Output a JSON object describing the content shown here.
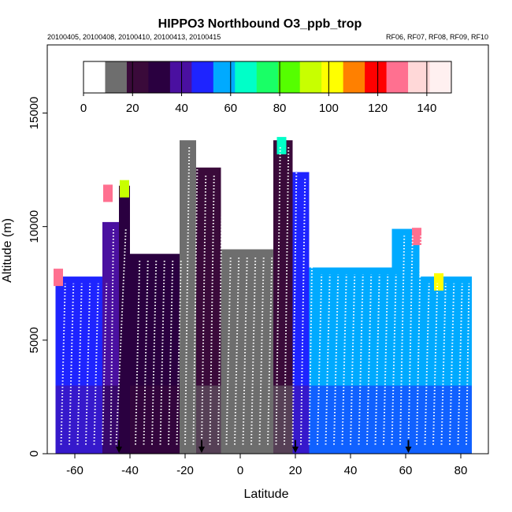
{
  "chart_data": {
    "type": "heatmap",
    "title": "HIPPO3 Northbound O3_ppb_trop",
    "subtitle_left": "20100405, 20100408, 20100410, 20100413, 20100415",
    "subtitle_right": "RF06, RF07, RF08, RF09, RF10",
    "xlabel": "Latitude",
    "ylabel": "Altitude (m)",
    "xlim": [
      -70,
      90
    ],
    "ylim": [
      0,
      18000
    ],
    "x_ticks": [
      -60,
      -40,
      -20,
      0,
      20,
      40,
      60,
      80
    ],
    "y_ticks": [
      0,
      5000,
      10000,
      15000
    ],
    "colorbar": {
      "range": [
        0,
        150
      ],
      "ticks": [
        0,
        20,
        40,
        60,
        80,
        100,
        120,
        140
      ],
      "colors": [
        "#ffffff",
        "#6e6e6e",
        "#3a0a3a",
        "#2a0040",
        "#4a10a0",
        "#1e24ff",
        "#00aaff",
        "#00ffc8",
        "#19ff66",
        "#55ff00",
        "#c8ff00",
        "#ffff00",
        "#ff8000",
        "#ff0000",
        "#ff7090",
        "#ffd8d8",
        "#fff0f0"
      ]
    },
    "profile_columns": [
      {
        "lat_min": -67,
        "lat_max": -50,
        "top": 7800,
        "value": 45
      },
      {
        "lat_min": -50,
        "lat_max": -44,
        "top": 10200,
        "value": 40
      },
      {
        "lat_min": -44,
        "lat_max": -40,
        "top": 11800,
        "value": 35
      },
      {
        "lat_min": -40,
        "lat_max": -22,
        "top": 8800,
        "value": 28
      },
      {
        "lat_min": -22,
        "lat_max": -16,
        "top": 13800,
        "value": 12
      },
      {
        "lat_min": -16,
        "lat_max": -7,
        "top": 12600,
        "value": 20
      },
      {
        "lat_min": -7,
        "lat_max": 12,
        "top": 9000,
        "value": 15
      },
      {
        "lat_min": 12,
        "lat_max": 19,
        "top": 13800,
        "value": 22
      },
      {
        "lat_min": 19,
        "lat_max": 25,
        "top": 12400,
        "value": 45
      },
      {
        "lat_min": 25,
        "lat_max": 55,
        "top": 8200,
        "value": 58
      },
      {
        "lat_min": 55,
        "lat_max": 65,
        "top": 9900,
        "value": 60
      },
      {
        "lat_min": 65,
        "lat_max": 84,
        "top": 7800,
        "value": 60
      }
    ],
    "stratosphere_edges": [
      {
        "lat": -66,
        "alt": 7800,
        "value": 130
      },
      {
        "lat": -48,
        "alt": 11500,
        "value": 130
      },
      {
        "lat": -42,
        "alt": 11700,
        "value": 90
      },
      {
        "lat": 15,
        "alt": 13600,
        "value": 70
      },
      {
        "lat": 64,
        "alt": 9600,
        "value": 130
      },
      {
        "lat": 72,
        "alt": 7600,
        "value": 100
      }
    ],
    "flight_tracks": [
      -65,
      -62,
      -59,
      -56,
      -53,
      -50,
      -47,
      -45,
      -38,
      -35,
      -32,
      -29,
      -26,
      -23,
      -20,
      -17,
      -14,
      -11,
      -8,
      -5,
      -2,
      1,
      4,
      7,
      10,
      13,
      16,
      19,
      22,
      25,
      28,
      31,
      34,
      37,
      40,
      43,
      46,
      49,
      52,
      55,
      58,
      61,
      64,
      67,
      70,
      73,
      76,
      79,
      82
    ],
    "arrows": [
      -44,
      -14,
      20,
      61
    ]
  }
}
